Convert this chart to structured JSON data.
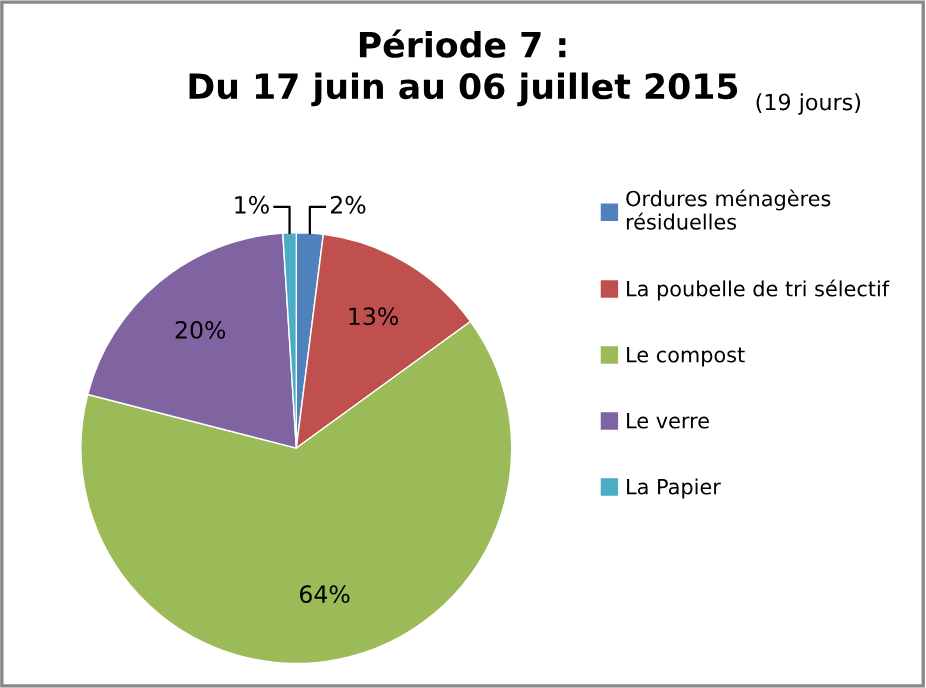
{
  "chart_data": {
    "type": "pie",
    "title": "Période 7 :\nDu 17 juin au 06 juillet 2015",
    "subtitle": "(19 jours)",
    "categories": [
      "Ordures ménagères\nrésiduelles",
      "La poubelle de tri sélectif",
      "Le compost",
      "Le verre",
      "La Papier"
    ],
    "values": [
      2,
      13,
      64,
      20,
      1
    ],
    "colors": [
      "#4f81bd",
      "#c0504d",
      "#9bbb59",
      "#8064a2",
      "#4bacc6"
    ],
    "value_labels": [
      "2%",
      "13%",
      "64%",
      "20%",
      "1%"
    ],
    "legend": "right"
  }
}
